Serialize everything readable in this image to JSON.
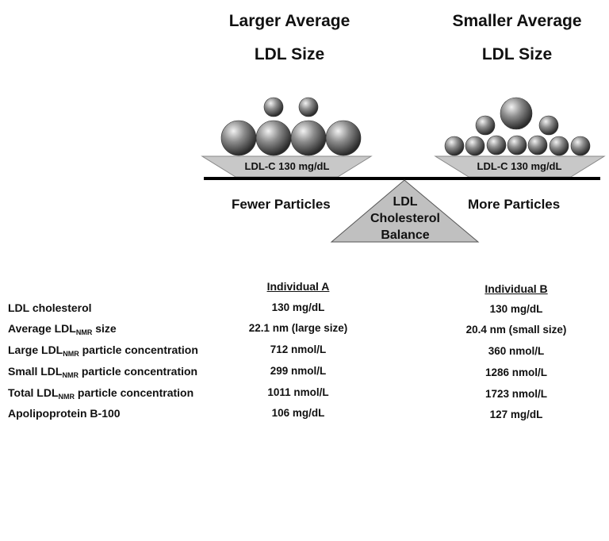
{
  "diagram": {
    "left_title_line1": "Larger Average",
    "left_title_line2": "LDL Size",
    "right_title_line1": "Smaller Average",
    "right_title_line2": "LDL Size",
    "left_tray_label": "LDL-C 130 mg/dL",
    "right_tray_label": "LDL-C 130 mg/dL",
    "left_caption": "Fewer Particles",
    "right_caption": "More Particles",
    "fulcrum_line1": "LDL",
    "fulcrum_line2": "Cholesterol",
    "fulcrum_line3": "Balance"
  },
  "table": {
    "col_a_header": "Individual A",
    "col_b_header": "Individual B",
    "rows": [
      {
        "label": "LDL cholesterol",
        "a": "130 mg/dL",
        "b": "130 mg/dL"
      },
      {
        "label_pre": "Average LDL",
        "label_sub": "NMR",
        "label_post": " size",
        "a": "22.1 nm (large size)",
        "b": "20.4 nm (small size)"
      },
      {
        "label_pre": "Large LDL",
        "label_sub": "NMR",
        "label_post": " particle concentration",
        "a": "712 nmol/L",
        "b": "360 nmol/L"
      },
      {
        "label_pre": "Small LDL",
        "label_sub": "NMR",
        "label_post": " particle concentration",
        "a": "299 nmol/L",
        "b": "1286 nmol/L"
      },
      {
        "label_pre": "Total LDL",
        "label_sub": "NMR",
        "label_post": " particle concentration",
        "a": "1011 nmol/L",
        "b": "1723 nmol/L"
      },
      {
        "label": "Apolipoprotein B-100",
        "a": "106 mg/dL",
        "b": "127 mg/dL"
      }
    ]
  }
}
